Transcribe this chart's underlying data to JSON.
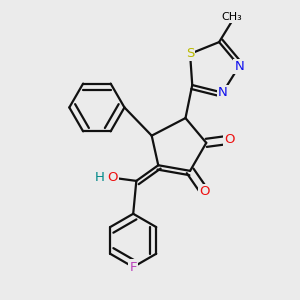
{
  "background_color": "#ebebeb",
  "figsize": [
    3.0,
    3.0
  ],
  "dpi": 100,
  "atom_colors": {
    "C": "#000000",
    "N": "#1010ee",
    "O": "#ee1010",
    "S": "#bbbb00",
    "F": "#bb44bb",
    "H": "#008888"
  },
  "bond_color": "#111111",
  "bond_lw": 1.6,
  "dbo": 0.018,
  "fs": 9.5
}
